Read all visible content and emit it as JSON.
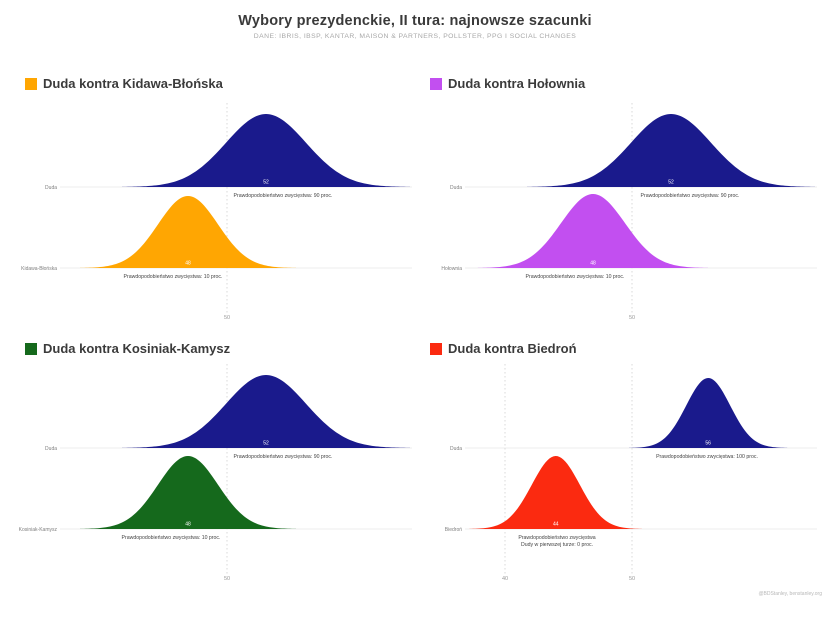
{
  "title": "Wybory prezydenckie, II tura: najnowsze szacunki",
  "subtitle": "DANE: IBRIS, IBSP, KANTAR, MAISON & PARTNERS, POLLSTER, PPG I SOCIAL CHANGES",
  "footer": "@BDStanley, benstanley.org",
  "colors": {
    "duda_navy": "#1a1a8c",
    "kidawa_orange": "#ffa602",
    "holownia_purple": "#c24ff0",
    "kosiniak_green": "#15691c",
    "biedron_red": "#fb2a10",
    "gridline": "#c8c8c8",
    "baseline": "#dddddd"
  },
  "chart_data": [
    {
      "type": "area",
      "title": "Duda kontra Kidawa-Błońska",
      "accent_color": "#ffa602",
      "x_ticks": [
        50
      ],
      "series": [
        {
          "name": "Duda",
          "color": "#1a1a8c",
          "value": 52,
          "annotation": [
            "Prawdopodobieństwo zwycięstwa: 90 proc."
          ]
        },
        {
          "name": "Kidawa-Błońska",
          "color": "#ffa602",
          "value": 48,
          "annotation": [
            "Prawdopodobieństwo zwycięstwa: 10 proc."
          ]
        }
      ]
    },
    {
      "type": "area",
      "title": "Duda kontra Hołownia",
      "accent_color": "#c24ff0",
      "x_ticks": [
        50
      ],
      "series": [
        {
          "name": "Duda",
          "color": "#1a1a8c",
          "value": 52,
          "annotation": [
            "Prawdopodobieństwo zwycięstwa: 90 proc."
          ]
        },
        {
          "name": "Hołownia",
          "color": "#c24ff0",
          "value": 48,
          "annotation": [
            "Prawdopodobieństwo zwycięstwa: 10 proc."
          ]
        }
      ]
    },
    {
      "type": "area",
      "title": "Duda kontra Kosiniak-Kamysz",
      "accent_color": "#15691c",
      "x_ticks": [
        50
      ],
      "series": [
        {
          "name": "Duda",
          "color": "#1a1a8c",
          "value": 52,
          "annotation": [
            "Prawdopodobieństwo zwycięstwa: 90 proc."
          ]
        },
        {
          "name": "Kosiniak-Kamysz",
          "color": "#15691c",
          "value": 48,
          "annotation": [
            "Prawdopodobieństwo zwycięstwa: 10 proc."
          ]
        }
      ]
    },
    {
      "type": "area",
      "title": "Duda kontra Biedroń",
      "accent_color": "#fb2a10",
      "x_ticks": [
        40,
        50
      ],
      "series": [
        {
          "name": "Duda",
          "color": "#1a1a8c",
          "value": 56,
          "annotation": [
            "Prawdopodobieństwo zwycięstwa: 100 proc."
          ]
        },
        {
          "name": "Biedroń",
          "color": "#fb2a10",
          "value": 44,
          "annotation": [
            "Prawdopodobieństwo zwycięstwa",
            "Dudy w pierwszej turze: 0 proc."
          ]
        }
      ]
    }
  ]
}
